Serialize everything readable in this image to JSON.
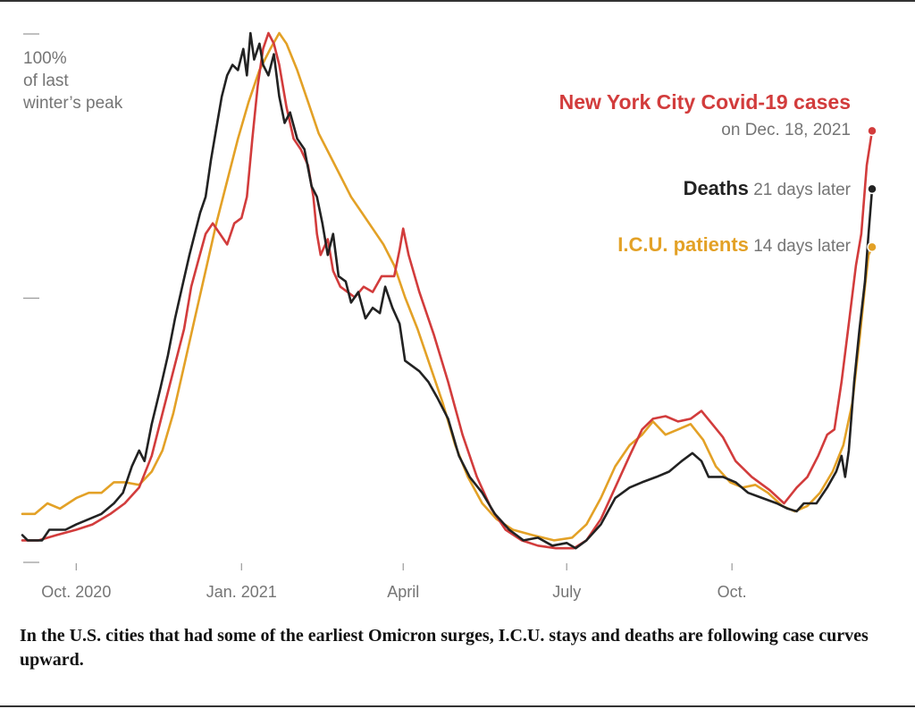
{
  "chart_data": {
    "type": "line",
    "title": "",
    "ylabel_lines": [
      "100%",
      "of last",
      "winter’s peak"
    ],
    "xlabel": "",
    "y_unit": "percent of last winter's peak",
    "ylim": [
      0,
      100
    ],
    "y_ticks": [
      0,
      50,
      100
    ],
    "x_range": [
      "2020-09-01",
      "2021-12-18"
    ],
    "x_ticks": [
      {
        "date": "2020-10-01",
        "label": "Oct. 2020"
      },
      {
        "date": "2021-01-01",
        "label": "Jan. 2021"
      },
      {
        "date": "2021-04-01",
        "label": "April"
      },
      {
        "date": "2021-07-01",
        "label": "July"
      },
      {
        "date": "2021-10-01",
        "label": "Oct."
      }
    ],
    "grid": false,
    "legend": "direct-labels-right",
    "series": [
      {
        "name": "New York City Covid-19 cases",
        "key": "cases",
        "label_bold": "New York City Covid-19 cases",
        "label_rest": "on Dec. 18, 2021",
        "color": "#d23c3c",
        "points": [
          [
            "2020-09-01",
            4
          ],
          [
            "2020-09-10",
            4
          ],
          [
            "2020-09-20",
            5
          ],
          [
            "2020-10-01",
            6
          ],
          [
            "2020-10-10",
            7
          ],
          [
            "2020-10-20",
            9
          ],
          [
            "2020-10-28",
            11
          ],
          [
            "2020-11-05",
            14
          ],
          [
            "2020-11-12",
            20
          ],
          [
            "2020-11-18",
            28
          ],
          [
            "2020-11-24",
            36
          ],
          [
            "2020-11-30",
            44
          ],
          [
            "2020-12-04",
            52
          ],
          [
            "2020-12-08",
            57
          ],
          [
            "2020-12-12",
            62
          ],
          [
            "2020-12-16",
            64
          ],
          [
            "2020-12-20",
            62
          ],
          [
            "2020-12-24",
            60
          ],
          [
            "2020-12-28",
            64
          ],
          [
            "2021-01-01",
            65
          ],
          [
            "2021-01-04",
            69
          ],
          [
            "2021-01-07",
            80
          ],
          [
            "2021-01-10",
            90
          ],
          [
            "2021-01-13",
            97
          ],
          [
            "2021-01-16",
            100
          ],
          [
            "2021-01-19",
            98
          ],
          [
            "2021-01-22",
            94
          ],
          [
            "2021-01-26",
            86
          ],
          [
            "2021-01-30",
            80
          ],
          [
            "2021-02-03",
            78
          ],
          [
            "2021-02-07",
            75
          ],
          [
            "2021-02-10",
            69
          ],
          [
            "2021-02-12",
            62
          ],
          [
            "2021-02-14",
            58
          ],
          [
            "2021-02-18",
            61
          ],
          [
            "2021-02-21",
            55
          ],
          [
            "2021-02-25",
            52
          ],
          [
            "2021-03-01",
            51
          ],
          [
            "2021-03-05",
            50
          ],
          [
            "2021-03-10",
            52
          ],
          [
            "2021-03-15",
            51
          ],
          [
            "2021-03-20",
            54
          ],
          [
            "2021-03-27",
            54
          ],
          [
            "2021-03-30",
            59
          ],
          [
            "2021-04-01",
            63
          ],
          [
            "2021-04-04",
            58
          ],
          [
            "2021-04-10",
            51
          ],
          [
            "2021-04-18",
            43
          ],
          [
            "2021-04-26",
            34
          ],
          [
            "2021-05-04",
            24
          ],
          [
            "2021-05-12",
            16
          ],
          [
            "2021-05-20",
            10
          ],
          [
            "2021-05-28",
            6
          ],
          [
            "2021-06-06",
            4
          ],
          [
            "2021-06-15",
            3
          ],
          [
            "2021-06-25",
            2.5
          ],
          [
            "2021-07-05",
            2.5
          ],
          [
            "2021-07-12",
            4
          ],
          [
            "2021-07-20",
            8
          ],
          [
            "2021-07-28",
            14
          ],
          [
            "2021-08-05",
            20
          ],
          [
            "2021-08-12",
            25
          ],
          [
            "2021-08-18",
            27
          ],
          [
            "2021-08-25",
            27.5
          ],
          [
            "2021-09-01",
            26.5
          ],
          [
            "2021-09-08",
            27
          ],
          [
            "2021-09-14",
            28.5
          ],
          [
            "2021-09-20",
            26
          ],
          [
            "2021-09-26",
            23.5
          ],
          [
            "2021-10-03",
            19
          ],
          [
            "2021-10-12",
            16
          ],
          [
            "2021-10-22",
            13.5
          ],
          [
            "2021-10-30",
            11
          ],
          [
            "2021-11-06",
            14
          ],
          [
            "2021-11-12",
            16
          ],
          [
            "2021-11-18",
            20
          ],
          [
            "2021-11-23",
            24
          ],
          [
            "2021-11-27",
            25
          ],
          [
            "2021-12-01",
            34
          ],
          [
            "2021-12-05",
            45
          ],
          [
            "2021-12-09",
            56
          ],
          [
            "2021-12-12",
            62
          ],
          [
            "2021-12-15",
            75
          ],
          [
            "2021-12-18",
            81.5
          ]
        ]
      },
      {
        "name": "Deaths",
        "key": "deaths",
        "label_bold": "Deaths",
        "label_rest": "21 days later",
        "color": "#222222",
        "points": [
          [
            "2020-09-01",
            5
          ],
          [
            "2020-09-04",
            4
          ],
          [
            "2020-09-12",
            4
          ],
          [
            "2020-09-16",
            6
          ],
          [
            "2020-09-25",
            6
          ],
          [
            "2020-10-01",
            7
          ],
          [
            "2020-10-08",
            8
          ],
          [
            "2020-10-15",
            9
          ],
          [
            "2020-10-22",
            11
          ],
          [
            "2020-10-27",
            13
          ],
          [
            "2020-11-01",
            18
          ],
          [
            "2020-11-05",
            21
          ],
          [
            "2020-11-08",
            19
          ],
          [
            "2020-11-12",
            26
          ],
          [
            "2020-11-17",
            33
          ],
          [
            "2020-11-21",
            39
          ],
          [
            "2020-11-25",
            46
          ],
          [
            "2020-11-29",
            52
          ],
          [
            "2020-12-03",
            58
          ],
          [
            "2020-12-06",
            62
          ],
          [
            "2020-12-09",
            66
          ],
          [
            "2020-12-12",
            69
          ],
          [
            "2020-12-15",
            76
          ],
          [
            "2020-12-18",
            82
          ],
          [
            "2020-12-21",
            88
          ],
          [
            "2020-12-24",
            92
          ],
          [
            "2020-12-27",
            94
          ],
          [
            "2020-12-30",
            93
          ],
          [
            "2021-01-02",
            97
          ],
          [
            "2021-01-04",
            92
          ],
          [
            "2021-01-06",
            100
          ],
          [
            "2021-01-08",
            95
          ],
          [
            "2021-01-11",
            98
          ],
          [
            "2021-01-13",
            94
          ],
          [
            "2021-01-16",
            92
          ],
          [
            "2021-01-19",
            96
          ],
          [
            "2021-01-22",
            88
          ],
          [
            "2021-01-25",
            83
          ],
          [
            "2021-01-28",
            85
          ],
          [
            "2021-02-01",
            80
          ],
          [
            "2021-02-05",
            78
          ],
          [
            "2021-02-09",
            71
          ],
          [
            "2021-02-12",
            69
          ],
          [
            "2021-02-15",
            64
          ],
          [
            "2021-02-18",
            58
          ],
          [
            "2021-02-21",
            62
          ],
          [
            "2021-02-24",
            54
          ],
          [
            "2021-02-28",
            53
          ],
          [
            "2021-03-03",
            49
          ],
          [
            "2021-03-07",
            51
          ],
          [
            "2021-03-11",
            46
          ],
          [
            "2021-03-15",
            48
          ],
          [
            "2021-03-19",
            47
          ],
          [
            "2021-03-22",
            52
          ],
          [
            "2021-03-26",
            48
          ],
          [
            "2021-03-30",
            45
          ],
          [
            "2021-04-02",
            38
          ],
          [
            "2021-04-06",
            37
          ],
          [
            "2021-04-10",
            36
          ],
          [
            "2021-04-15",
            34
          ],
          [
            "2021-04-20",
            31
          ],
          [
            "2021-04-26",
            27
          ],
          [
            "2021-05-02",
            20
          ],
          [
            "2021-05-08",
            16
          ],
          [
            "2021-05-15",
            13
          ],
          [
            "2021-05-22",
            9
          ],
          [
            "2021-05-30",
            6
          ],
          [
            "2021-06-07",
            4
          ],
          [
            "2021-06-15",
            4.5
          ],
          [
            "2021-06-23",
            3
          ],
          [
            "2021-07-01",
            3.5
          ],
          [
            "2021-07-06",
            2.5
          ],
          [
            "2021-07-12",
            4
          ],
          [
            "2021-07-20",
            7
          ],
          [
            "2021-07-28",
            12
          ],
          [
            "2021-08-05",
            14
          ],
          [
            "2021-08-12",
            15
          ],
          [
            "2021-08-20",
            16
          ],
          [
            "2021-08-27",
            17
          ],
          [
            "2021-09-03",
            19
          ],
          [
            "2021-09-09",
            20.5
          ],
          [
            "2021-09-14",
            19
          ],
          [
            "2021-09-18",
            16
          ],
          [
            "2021-09-26",
            16
          ],
          [
            "2021-10-03",
            15
          ],
          [
            "2021-10-10",
            13
          ],
          [
            "2021-10-18",
            12
          ],
          [
            "2021-10-26",
            11
          ],
          [
            "2021-11-01",
            10
          ],
          [
            "2021-11-06",
            9.5
          ],
          [
            "2021-11-10",
            11
          ],
          [
            "2021-11-17",
            11
          ],
          [
            "2021-11-23",
            14
          ],
          [
            "2021-11-28",
            17
          ],
          [
            "2021-12-01",
            20
          ],
          [
            "2021-12-03",
            16
          ],
          [
            "2021-12-05",
            21
          ],
          [
            "2021-12-08",
            34
          ],
          [
            "2021-12-11",
            44
          ],
          [
            "2021-12-14",
            53
          ],
          [
            "2021-12-16",
            62
          ],
          [
            "2021-12-18",
            70.5
          ]
        ]
      },
      {
        "name": "I.C.U. patients",
        "key": "icu",
        "label_bold": "I.C.U. patients",
        "label_rest": "14 days later",
        "color": "#e3a126",
        "points": [
          [
            "2020-09-01",
            9
          ],
          [
            "2020-09-08",
            9
          ],
          [
            "2020-09-15",
            11
          ],
          [
            "2020-09-22",
            10
          ],
          [
            "2020-10-01",
            12
          ],
          [
            "2020-10-08",
            13
          ],
          [
            "2020-10-15",
            13
          ],
          [
            "2020-10-22",
            15
          ],
          [
            "2020-10-28",
            15
          ],
          [
            "2020-11-05",
            14.5
          ],
          [
            "2020-11-12",
            17
          ],
          [
            "2020-11-18",
            21
          ],
          [
            "2020-11-24",
            28
          ],
          [
            "2020-11-30",
            37
          ],
          [
            "2020-12-06",
            46
          ],
          [
            "2020-12-12",
            55
          ],
          [
            "2020-12-18",
            64
          ],
          [
            "2020-12-24",
            72
          ],
          [
            "2020-12-30",
            80
          ],
          [
            "2021-01-05",
            87
          ],
          [
            "2021-01-11",
            93
          ],
          [
            "2021-01-17",
            97
          ],
          [
            "2021-01-22",
            100
          ],
          [
            "2021-01-26",
            98
          ],
          [
            "2021-02-01",
            93
          ],
          [
            "2021-02-07",
            87
          ],
          [
            "2021-02-13",
            81
          ],
          [
            "2021-02-19",
            77
          ],
          [
            "2021-02-25",
            73
          ],
          [
            "2021-03-03",
            69
          ],
          [
            "2021-03-09",
            66
          ],
          [
            "2021-03-15",
            63
          ],
          [
            "2021-03-21",
            60
          ],
          [
            "2021-03-27",
            56
          ],
          [
            "2021-04-02",
            50
          ],
          [
            "2021-04-09",
            44
          ],
          [
            "2021-04-16",
            37
          ],
          [
            "2021-04-23",
            30
          ],
          [
            "2021-04-30",
            22
          ],
          [
            "2021-05-07",
            16
          ],
          [
            "2021-05-15",
            11
          ],
          [
            "2021-05-23",
            8
          ],
          [
            "2021-06-01",
            6
          ],
          [
            "2021-06-12",
            5
          ],
          [
            "2021-06-24",
            4
          ],
          [
            "2021-07-04",
            4.5
          ],
          [
            "2021-07-12",
            7
          ],
          [
            "2021-07-20",
            12
          ],
          [
            "2021-07-28",
            18
          ],
          [
            "2021-08-05",
            22
          ],
          [
            "2021-08-12",
            24
          ],
          [
            "2021-08-18",
            26.5
          ],
          [
            "2021-08-25",
            24
          ],
          [
            "2021-09-01",
            25
          ],
          [
            "2021-09-08",
            26
          ],
          [
            "2021-09-15",
            23
          ],
          [
            "2021-09-22",
            18
          ],
          [
            "2021-09-30",
            15
          ],
          [
            "2021-10-07",
            14
          ],
          [
            "2021-10-14",
            14.5
          ],
          [
            "2021-10-21",
            13
          ],
          [
            "2021-10-29",
            10.5
          ],
          [
            "2021-11-05",
            9.5
          ],
          [
            "2021-11-12",
            10.5
          ],
          [
            "2021-11-19",
            13
          ],
          [
            "2021-11-26",
            17
          ],
          [
            "2021-12-02",
            22
          ],
          [
            "2021-12-07",
            30
          ],
          [
            "2021-12-11",
            42
          ],
          [
            "2021-12-14",
            52
          ],
          [
            "2021-12-16",
            58
          ],
          [
            "2021-12-18",
            59.5
          ]
        ]
      }
    ]
  },
  "caption": "In the U.S. cities that had some of the earliest Omicron surges, I.C.U. stays and deaths are following case curves upward."
}
